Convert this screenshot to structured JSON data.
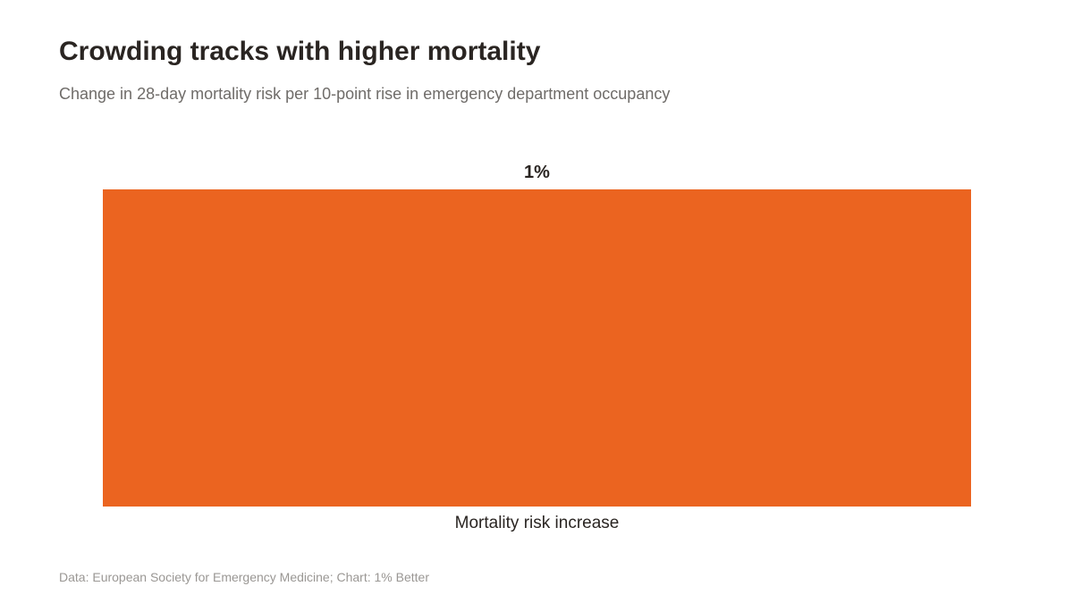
{
  "header": {
    "title": "Crowding tracks with higher mortality",
    "subtitle": "Change in 28-day mortality risk per 10-point rise in emergency department occupancy"
  },
  "footer": {
    "source": "Data: European Society for Emergency Medicine; Chart: 1% Better"
  },
  "colors": {
    "bar": "#eb6420",
    "title": "#2a2522",
    "subtitle": "#6f6c69",
    "label": "#2a2522",
    "source": "#9a9794"
  },
  "chart_data": {
    "type": "bar",
    "title": "Crowding tracks with higher mortality",
    "subtitle": "Change in 28-day mortality risk per 10-point rise in emergency department occupancy",
    "categories": [
      "Mortality risk increase"
    ],
    "values": [
      1
    ],
    "data_labels": [
      "1%"
    ],
    "unit": "%",
    "ylim": [
      0,
      1
    ],
    "grid": false,
    "legend": "none",
    "axis_lines": false
  }
}
